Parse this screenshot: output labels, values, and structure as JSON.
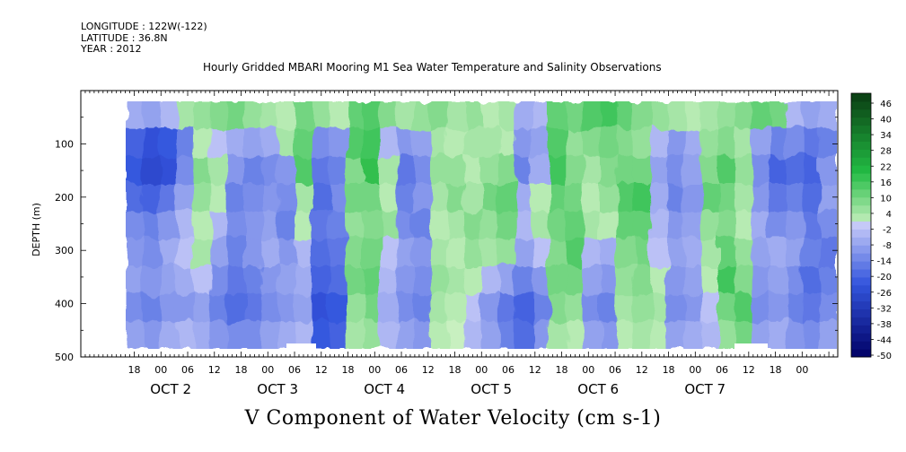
{
  "header": {
    "longitude": "LONGITUDE : 122W(-122)",
    "latitude": "LATITUDE : 36.8N",
    "year": "YEAR : 2012"
  },
  "title": "Hourly Gridded MBARI Mooring M1 Sea Water Temperature and Salinity Observations",
  "variable_title": "V Component of Water Velocity (cm s-1)",
  "chart_data": {
    "type": "heatmap",
    "ylabel": "DEPTH (m)",
    "y_axis": {
      "range": [
        500,
        10
      ],
      "reversed": true,
      "tick_values": [
        100,
        200,
        300,
        400,
        500
      ]
    },
    "x_axis": {
      "hour_tick_labels": [
        "18",
        "00",
        "06",
        "12",
        "18",
        "00",
        "06",
        "12",
        "18",
        "00",
        "06",
        "12",
        "18",
        "00",
        "06",
        "12",
        "18",
        "00",
        "06",
        "12",
        "18",
        "00",
        "06",
        "12",
        "18",
        "00"
      ],
      "day_labels": [
        "OCT  2",
        "OCT  3",
        "OCT  4",
        "OCT  5",
        "OCT  6",
        "OCT  7"
      ]
    },
    "colorbar": {
      "labels": [
        "46",
        "40",
        "34",
        "28",
        "22",
        "16",
        "10",
        "4",
        "-2",
        "-8",
        "-14",
        "-20",
        "-26",
        "-32",
        "-38",
        "-44",
        "-50"
      ],
      "levels": [
        -50,
        -47,
        -44,
        -41,
        -38,
        -35,
        -32,
        -29,
        -26,
        -23,
        -20,
        -17,
        -14,
        -11,
        -8,
        -5,
        -2,
        1,
        4,
        7,
        10,
        13,
        16,
        19,
        22,
        25,
        28,
        31,
        34,
        37,
        40,
        43,
        46,
        49
      ],
      "colors": {
        "neg_dark": "#000066",
        "neg_mid": "#3355dd",
        "neg_light": "#c8ccf8",
        "pos_light": "#c8f0c0",
        "pos_mid": "#22bb44",
        "pos_dark": "#0a3d12"
      }
    },
    "columns": [
      {
        "v": [
          -6,
          -20,
          -22,
          -18,
          -12,
          -10,
          -8,
          -12,
          -8
        ]
      },
      {
        "v": [
          -8,
          -24,
          -26,
          -20,
          -14,
          -12,
          -10,
          -14,
          -10
        ]
      },
      {
        "v": [
          -4,
          -22,
          -24,
          -16,
          -10,
          -6,
          -8,
          -10,
          -6
        ]
      },
      {
        "v": [
          4,
          -14,
          -12,
          -8,
          -4,
          -2,
          -6,
          -10,
          -4
        ]
      },
      {
        "v": [
          6,
          2,
          8,
          6,
          2,
          4,
          -2,
          -8,
          -6
        ]
      },
      {
        "v": [
          8,
          -2,
          4,
          2,
          -4,
          -8,
          -12,
          -14,
          -10
        ]
      },
      {
        "v": [
          10,
          -6,
          -10,
          -14,
          -12,
          -14,
          -16,
          -18,
          -12
        ]
      },
      {
        "v": [
          6,
          -8,
          -14,
          -12,
          -10,
          -10,
          -14,
          -16,
          -12
        ]
      },
      {
        "v": [
          4,
          -6,
          -12,
          -10,
          -8,
          -6,
          -10,
          -12,
          -8
        ]
      },
      {
        "v": [
          2,
          4,
          -10,
          -12,
          -14,
          -10,
          -8,
          -10,
          -6
        ]
      },
      {
        "v": [
          10,
          12,
          14,
          4,
          2,
          -4,
          -6,
          -8,
          -4
        ]
      },
      {
        "v": [
          6,
          -12,
          -16,
          -18,
          -16,
          -18,
          -20,
          -24,
          -22
        ]
      },
      {
        "v": [
          2,
          -10,
          -14,
          -12,
          -14,
          -16,
          -18,
          -22,
          -20
        ]
      },
      {
        "v": [
          12,
          14,
          8,
          10,
          6,
          8,
          10,
          6,
          4
        ]
      },
      {
        "v": [
          14,
          16,
          18,
          10,
          8,
          10,
          12,
          10,
          6
        ]
      },
      {
        "v": [
          8,
          -4,
          4,
          2,
          6,
          -2,
          -4,
          -6,
          -4
        ]
      },
      {
        "v": [
          4,
          -10,
          -16,
          -14,
          -12,
          -8,
          -10,
          -12,
          -8
        ]
      },
      {
        "v": [
          6,
          -8,
          -12,
          -10,
          -14,
          -10,
          -12,
          -14,
          -10
        ]
      },
      {
        "v": [
          8,
          4,
          6,
          4,
          2,
          4,
          6,
          4,
          2
        ]
      },
      {
        "v": [
          4,
          2,
          6,
          8,
          4,
          2,
          4,
          2,
          0
        ]
      },
      {
        "v": [
          6,
          4,
          2,
          4,
          8,
          6,
          2,
          -2,
          -4
        ]
      },
      {
        "v": [
          2,
          4,
          6,
          10,
          6,
          4,
          -4,
          -10,
          -8
        ]
      },
      {
        "v": [
          4,
          2,
          8,
          12,
          10,
          6,
          -8,
          -16,
          -14
        ]
      },
      {
        "v": [
          -6,
          -10,
          -14,
          -6,
          -4,
          -8,
          -14,
          -20,
          -18
        ]
      },
      {
        "v": [
          -4,
          -8,
          -6,
          2,
          4,
          -2,
          -10,
          -14,
          -10
        ]
      },
      {
        "v": [
          12,
          14,
          16,
          12,
          10,
          8,
          10,
          8,
          4
        ]
      },
      {
        "v": [
          10,
          6,
          8,
          10,
          12,
          14,
          10,
          6,
          2
        ]
      },
      {
        "v": [
          14,
          8,
          4,
          2,
          4,
          -4,
          -8,
          -12,
          -8
        ]
      },
      {
        "v": [
          16,
          10,
          8,
          6,
          2,
          -6,
          -10,
          -14,
          -10
        ]
      },
      {
        "v": [
          12,
          8,
          10,
          14,
          12,
          8,
          6,
          4,
          2
        ]
      },
      {
        "v": [
          8,
          6,
          10,
          16,
          12,
          10,
          8,
          6,
          4
        ]
      },
      {
        "v": [
          6,
          -4,
          -8,
          -6,
          -4,
          -2,
          2,
          4,
          2
        ]
      },
      {
        "v": [
          4,
          -10,
          -12,
          -14,
          -10,
          -8,
          -10,
          -12,
          -8
        ]
      },
      {
        "v": [
          2,
          -6,
          -8,
          -10,
          -8,
          -6,
          -8,
          -10,
          -6
        ]
      },
      {
        "v": [
          4,
          6,
          8,
          12,
          6,
          4,
          2,
          -2,
          -4
        ]
      },
      {
        "v": [
          6,
          8,
          14,
          10,
          8,
          12,
          16,
          10,
          6
        ]
      },
      {
        "v": [
          8,
          4,
          6,
          4,
          2,
          6,
          8,
          14,
          10
        ]
      },
      {
        "v": [
          12,
          -8,
          -12,
          -10,
          -6,
          -8,
          -10,
          -12,
          -8
        ]
      },
      {
        "v": [
          10,
          -14,
          -20,
          -16,
          -12,
          -6,
          -8,
          -10,
          -6
        ]
      },
      {
        "v": [
          -4,
          -12,
          -18,
          -14,
          -10,
          -8,
          -12,
          -14,
          -10
        ]
      },
      {
        "v": [
          -8,
          -16,
          -20,
          -18,
          -16,
          -14,
          -18,
          -16,
          -12
        ]
      },
      {
        "v": [
          -6,
          -14,
          -10,
          -8,
          -12,
          -16,
          -14,
          -12,
          -8
        ]
      }
    ]
  }
}
